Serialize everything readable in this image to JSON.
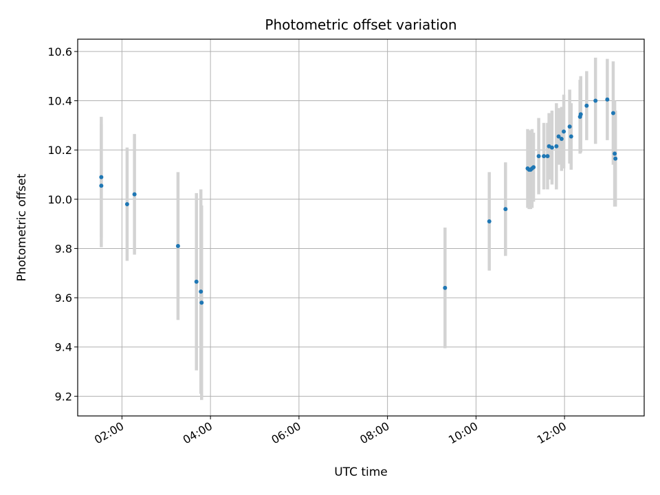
{
  "chart_data": {
    "type": "scatter",
    "title": "Photometric offset variation",
    "xlabel": "UTC time",
    "ylabel": "Photometric offset",
    "x_axis_type": "time",
    "xlim": [
      "01:00",
      "13:48"
    ],
    "ylim": [
      9.12,
      10.65
    ],
    "xticks": [
      "02:00",
      "04:00",
      "06:00",
      "08:00",
      "10:00",
      "12:00"
    ],
    "yticks": [
      9.2,
      9.4,
      9.6,
      9.8,
      10.0,
      10.2,
      10.4,
      10.6
    ],
    "ytick_labels": [
      "9.2",
      "9.4",
      "9.6",
      "9.8",
      "10.0",
      "10.2",
      "10.4",
      "10.6"
    ],
    "grid": true,
    "legend": "none",
    "colors": {
      "marker": "#1f77b4",
      "errorbar": "#d3d3d3",
      "grid": "#b0b0b0"
    },
    "points": [
      {
        "x": "01:32",
        "y": 10.09,
        "yerr": 0.245
      },
      {
        "x": "01:32",
        "y": 10.055,
        "yerr": 0.25
      },
      {
        "x": "02:07",
        "y": 9.98,
        "yerr": 0.23
      },
      {
        "x": "02:17",
        "y": 10.02,
        "yerr": 0.245
      },
      {
        "x": "03:16",
        "y": 9.81,
        "yerr": 0.3
      },
      {
        "x": "03:41",
        "y": 9.665,
        "yerr": 0.36
      },
      {
        "x": "03:47",
        "y": 9.625,
        "yerr": 0.415
      },
      {
        "x": "03:48",
        "y": 9.58,
        "yerr": 0.395
      },
      {
        "x": "09:18",
        "y": 9.64,
        "yerr": 0.245
      },
      {
        "x": "10:18",
        "y": 9.91,
        "yerr": 0.2
      },
      {
        "x": "10:40",
        "y": 9.96,
        "yerr": 0.19
      },
      {
        "x": "11:10",
        "y": 10.125,
        "yerr": 0.16
      },
      {
        "x": "11:12",
        "y": 10.12,
        "yerr": 0.16
      },
      {
        "x": "11:14",
        "y": 10.12,
        "yerr": 0.16
      },
      {
        "x": "11:16",
        "y": 10.125,
        "yerr": 0.16
      },
      {
        "x": "11:18",
        "y": 10.13,
        "yerr": 0.14
      },
      {
        "x": "11:25",
        "y": 10.175,
        "yerr": 0.155
      },
      {
        "x": "11:32",
        "y": 10.175,
        "yerr": 0.135
      },
      {
        "x": "11:37",
        "y": 10.175,
        "yerr": 0.135
      },
      {
        "x": "11:39",
        "y": 10.215,
        "yerr": 0.135
      },
      {
        "x": "11:43",
        "y": 10.21,
        "yerr": 0.15
      },
      {
        "x": "11:49",
        "y": 10.215,
        "yerr": 0.175
      },
      {
        "x": "11:52",
        "y": 10.255,
        "yerr": 0.115
      },
      {
        "x": "11:56",
        "y": 10.245,
        "yerr": 0.13
      },
      {
        "x": "11:59",
        "y": 10.275,
        "yerr": 0.15
      },
      {
        "x": "12:07",
        "y": 10.295,
        "yerr": 0.15
      },
      {
        "x": "12:09",
        "y": 10.255,
        "yerr": 0.135
      },
      {
        "x": "12:21",
        "y": 10.335,
        "yerr": 0.15
      },
      {
        "x": "12:22",
        "y": 10.345,
        "yerr": 0.155
      },
      {
        "x": "12:30",
        "y": 10.38,
        "yerr": 0.14
      },
      {
        "x": "12:42",
        "y": 10.4,
        "yerr": 0.175
      },
      {
        "x": "12:58",
        "y": 10.405,
        "yerr": 0.165
      },
      {
        "x": "13:06",
        "y": 10.35,
        "yerr": 0.21
      },
      {
        "x": "13:08",
        "y": 10.185,
        "yerr": 0.215
      },
      {
        "x": "13:09",
        "y": 10.165,
        "yerr": 0.195
      }
    ]
  }
}
